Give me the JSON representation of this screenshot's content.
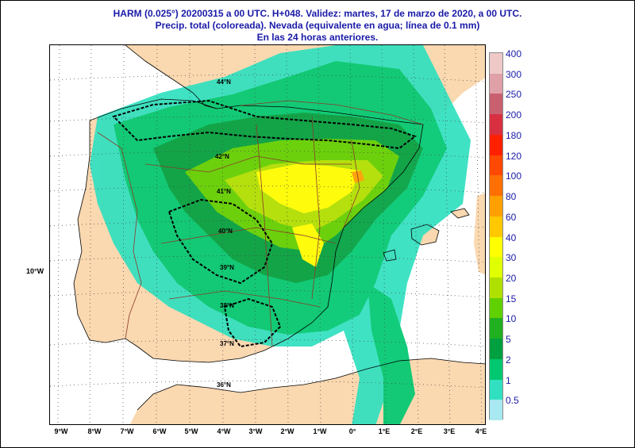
{
  "title": {
    "line1": "HARM (0.025°) 20200315 a 00 UTC.  H+048. Validez: martes, 17 de marzo de 2020,  a  00 UTC.",
    "line2": "Precip. total (coloreada). Nevada (equivalente en agua; línea de 0.1 mm)",
    "line3": "En las 24 horas anteriores."
  },
  "longitude_labels": [
    "9°W",
    "8°W",
    "7°W",
    "6°W",
    "5°W",
    "4°W",
    "3°W",
    "2°W",
    "1°W",
    "0°",
    "1°E",
    "2°E",
    "3°E",
    "4°E"
  ],
  "side_label": "10°W",
  "latitude_labels": [
    "44°N",
    "42°N",
    "41°N",
    "40°N",
    "39°N",
    "38°N",
    "37°N",
    "36°N"
  ],
  "legend": {
    "labels": [
      "400",
      "300",
      "250",
      "200",
      "180",
      "120",
      "100",
      "80",
      "60",
      "40",
      "30",
      "20",
      "15",
      "10",
      "5",
      "2",
      "1",
      "0.5"
    ],
    "colors": [
      "#efc8c8",
      "#e0a0a8",
      "#c86070",
      "#d83040",
      "#ff2000",
      "#ff4800",
      "#ff7000",
      "#ffa000",
      "#ffc800",
      "#ffff00",
      "#e0ff00",
      "#b0e000",
      "#60d000",
      "#20b020",
      "#00a040",
      "#00c870",
      "#30e0c0",
      "#a8e8f0"
    ]
  },
  "colors": {
    "land": "#fad8b0",
    "sea": "#ffffff",
    "title": "#1a1aa8"
  }
}
